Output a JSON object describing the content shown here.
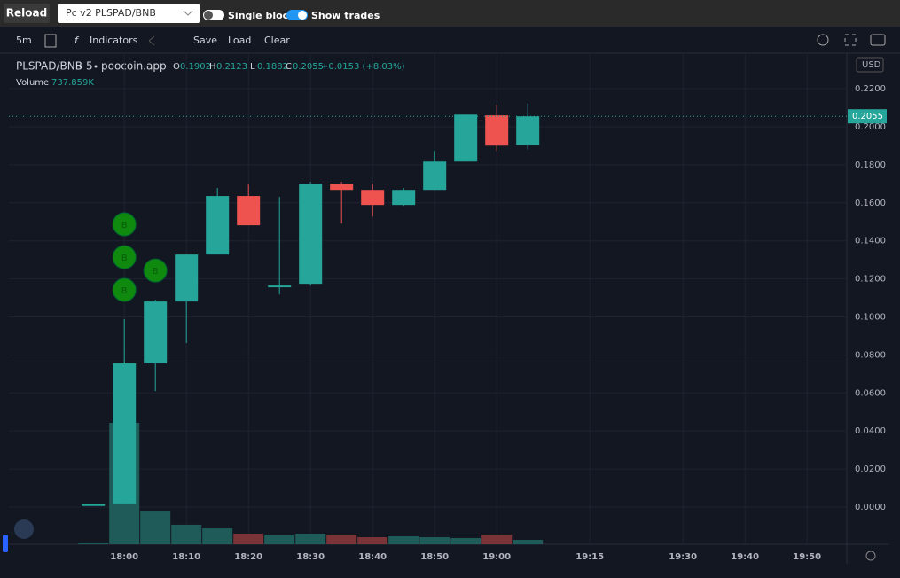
{
  "ui": {
    "reload": "Reload",
    "pair_select": "Pc v2 PLSPAD/BNB",
    "single_blocks": "Single blocks",
    "show_trades": "Show trades",
    "interval": "5m",
    "indicators": "Indicators",
    "save": "Save",
    "load": "Load",
    "clear": "Clear",
    "currency": "USD"
  },
  "chart_data": {
    "type": "candlestick",
    "symbol": "PLSPAD/BNB",
    "interval": "5",
    "source": "poocoin.app",
    "ohlc_letters": [
      "O",
      "H",
      "L",
      "C"
    ],
    "change": "+0.0153 (+8.03%)",
    "x": [
      1075,
      1080,
      1085,
      1090,
      1095,
      1100,
      1105,
      1110,
      1115,
      1120,
      1125,
      1130,
      1135,
      1140,
      1145
    ],
    "open": [
      0.0015,
      0.0019,
      0.0755,
      0.1081,
      0.1328,
      0.1636,
      0.1165,
      0.1174,
      0.1701,
      0.1668,
      0.1589,
      0.1668,
      0.1817,
      0.206,
      0.1902
    ],
    "high": [
      0.0015,
      0.0988,
      0.109,
      0.1328,
      0.1678,
      0.1696,
      0.1631,
      0.171,
      0.171,
      0.1701,
      0.1678,
      0.1873,
      0.2064,
      0.2116,
      0.2123
    ],
    "low": [
      0.0015,
      0.0019,
      0.061,
      0.0862,
      0.1328,
      0.1482,
      0.1118,
      0.1165,
      0.1491,
      0.1528,
      0.1584,
      0.1668,
      0.1817,
      0.1873,
      0.1882
    ],
    "close": [
      0.0015,
      0.0755,
      0.1081,
      0.1328,
      0.1636,
      0.1482,
      0.1165,
      0.1701,
      0.1668,
      0.1589,
      0.1668,
      0.1817,
      0.2064,
      0.1901,
      0.2055
    ],
    "volume": {
      "name": "Volume",
      "values": [
        300000,
        20200000,
        5600000,
        3250000,
        2650000,
        1770000,
        1620000,
        1770000,
        1620000,
        1180000,
        1330000,
        1180000,
        1030000,
        1620000,
        737859
      ],
      "value_labels": [
        null,
        null,
        null,
        null,
        null,
        null,
        null,
        null,
        null,
        null,
        null,
        null,
        null,
        null,
        "737.859K"
      ]
    },
    "trades": [
      {
        "label": "B",
        "x": 1080,
        "price": 0.1487
      },
      {
        "label": "B",
        "x": 1080,
        "price": 0.1314
      },
      {
        "label": "B",
        "x": 1080,
        "price": 0.1142
      },
      {
        "label": "B",
        "x": 1085,
        "price": 0.1244
      }
    ],
    "up_color": "#26a69a",
    "down_color": "#ef5350",
    "volume_up_color": "#1f5b58",
    "volume_down_color": "#7a3438",
    "trade_color": "#0f8a0f",
    "xlim": [
      1061.4,
      1196.4
    ],
    "xticks": [
      {
        "value": 1080,
        "label": "18:00"
      },
      {
        "value": 1090,
        "label": "18:10"
      },
      {
        "value": 1100,
        "label": "18:20"
      },
      {
        "value": 1110,
        "label": "18:30"
      },
      {
        "value": 1120,
        "label": "18:40"
      },
      {
        "value": 1130,
        "label": "18:50"
      },
      {
        "value": 1140,
        "label": "19:00"
      },
      {
        "value": 1155,
        "label": "19:15"
      },
      {
        "value": 1170,
        "label": "19:30"
      },
      {
        "value": 1180,
        "label": "19:40"
      },
      {
        "value": 1190,
        "label": "19:50"
      }
    ],
    "ylim": [
      -0.0196,
      0.2387
    ],
    "yticks": [
      {
        "value": 0,
        "label": "0.0000"
      },
      {
        "value": 0.02,
        "label": "0.0200"
      },
      {
        "value": 0.04,
        "label": "0.0400"
      },
      {
        "value": 0.06,
        "label": "0.0600"
      },
      {
        "value": 0.08,
        "label": "0.0800"
      },
      {
        "value": 0.1,
        "label": "0.1000"
      },
      {
        "value": 0.12,
        "label": "0.1200"
      },
      {
        "value": 0.14,
        "label": "0.1400"
      },
      {
        "value": 0.16,
        "label": "0.1600"
      },
      {
        "value": 0.18,
        "label": "0.1800"
      },
      {
        "value": 0.2,
        "label": "0.2000"
      },
      {
        "value": 0.22,
        "label": "0.2200"
      }
    ],
    "grid": true
  }
}
